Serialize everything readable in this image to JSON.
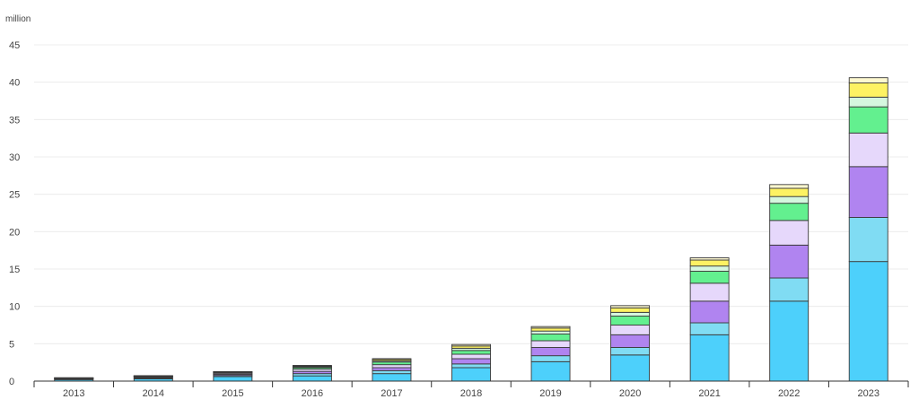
{
  "chart_data": {
    "type": "bar",
    "stacked": true,
    "unit_label": "million",
    "categories": [
      "2013",
      "2014",
      "2015",
      "2016",
      "2017",
      "2018",
      "2019",
      "2020",
      "2021",
      "2022",
      "2023"
    ],
    "ylim": [
      0,
      45
    ],
    "yticks": [
      0,
      5,
      10,
      15,
      20,
      25,
      30,
      35,
      40,
      45
    ],
    "grid": true,
    "legend": "none",
    "series": [
      {
        "color": "#4dd0fb",
        "values": [
          0.2,
          0.3,
          0.6,
          0.7,
          1.0,
          1.8,
          2.6,
          3.5,
          6.2,
          10.7,
          16.0
        ]
      },
      {
        "color": "#80dcf3",
        "values": [
          0.05,
          0.1,
          0.15,
          0.3,
          0.4,
          0.5,
          0.8,
          1.0,
          1.6,
          3.1,
          5.9
        ]
      },
      {
        "color": "#b084f0",
        "values": [
          0.05,
          0.1,
          0.15,
          0.3,
          0.4,
          0.7,
          1.1,
          1.7,
          2.9,
          4.4,
          6.8
        ]
      },
      {
        "color": "#e6d8fb",
        "values": [
          0.05,
          0.1,
          0.15,
          0.3,
          0.4,
          0.6,
          0.9,
          1.3,
          2.4,
          3.3,
          4.5
        ]
      },
      {
        "color": "#63f08f",
        "values": [
          0.05,
          0.05,
          0.1,
          0.2,
          0.35,
          0.5,
          0.9,
          1.2,
          1.6,
          2.3,
          3.5
        ]
      },
      {
        "color": "#d5f7df",
        "values": [
          0.02,
          0.03,
          0.05,
          0.1,
          0.15,
          0.3,
          0.4,
          0.5,
          0.7,
          0.9,
          1.3
        ]
      },
      {
        "color": "#fdf263",
        "values": [
          0.02,
          0.03,
          0.04,
          0.1,
          0.2,
          0.3,
          0.4,
          0.6,
          0.8,
          1.1,
          1.9
        ]
      },
      {
        "color": "#fdf8cf",
        "values": [
          0.01,
          0.02,
          0.03,
          0.1,
          0.1,
          0.2,
          0.2,
          0.3,
          0.3,
          0.5,
          0.7
        ]
      }
    ]
  }
}
